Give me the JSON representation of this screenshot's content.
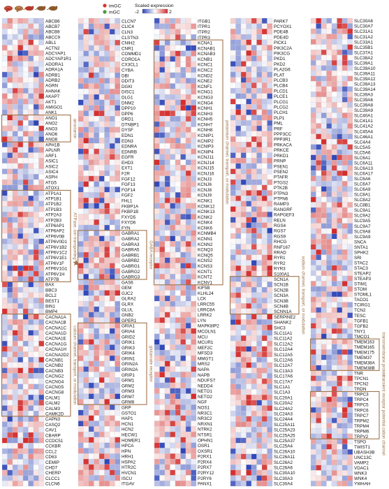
{
  "legend": {
    "groups": [
      {
        "name": "imGC",
        "color": "#d9352b"
      },
      {
        "name": "mGC",
        "color": "#4a9a3c"
      }
    ],
    "scale_title": "Scaled expression",
    "scale_min": "-2",
    "scale_max": "2",
    "colors": {
      "low": "#2e45b8",
      "mid": "#ffffff",
      "high": "#d42a2a",
      "annotation": "#a0744a",
      "grid": "#cfcfcf"
    }
  },
  "header_icons": [
    "brain-icon",
    "brain-icon",
    "mouse-icon",
    "mouse-icon",
    "mouse-icon"
  ],
  "chart_data": {
    "type": "heatmap",
    "columns_per_gene_block": 8,
    "value_range": [
      -2,
      2
    ],
    "panels": [
      {
        "genes": [
          "ABCB6",
          "ABCB7",
          "ABCB8",
          "ABCC9",
          "ABL1",
          "ACTN2",
          "ADCYAP1",
          "ADCYAP1R1",
          "ADORA1",
          "ADRA1A",
          "ADRB1",
          "ADRB2",
          "AGRN",
          "AHNAK",
          "AKAP7",
          "AKT1",
          "AMIGO1",
          "ANK1",
          "ANO1",
          "ANO2",
          "ANO3",
          "ANO6",
          "ANO8",
          "APH1B",
          "APLNR",
          "ARF1",
          "ASIC1",
          "ASIC2",
          "ASIC4",
          "ASPH",
          "ATG5",
          "ATOX1",
          "ATP1A1",
          "ATP1B1",
          "ATP1B2",
          "ATP1B3",
          "ATP2A3",
          "ATP2B3",
          "ATP6AP1",
          "ATP6AP2",
          "ATP6V0B",
          "ATP6V0D1",
          "ATP6V1B2",
          "ATP6V1C2",
          "ATP6V1E1",
          "ATP6V1F",
          "ATP6V1G1",
          "ATP6V1H",
          "ATP7B",
          "BAX",
          "BBC3",
          "BCL2",
          "BEST1",
          "BIN1",
          "BMP4",
          "CACNA1A",
          "CACNA1B",
          "CACNA1C",
          "CACNA1D",
          "CACNA1E",
          "CACNA1G",
          "CACNA1H",
          "CACNA2D2",
          "CACNB1",
          "CACNB2",
          "CACNB3",
          "CACNG2",
          "CACNG4",
          "CACNG5",
          "CACNG8",
          "CALM1",
          "CALM2",
          "CALM3",
          "CAMK2D",
          "CAPN3",
          "CASQ2",
          "CAV1",
          "CBARP",
          "CCDC51",
          "CCKBR",
          "CCL2",
          "CD63",
          "CEMIP",
          "CHD7",
          "CHERP",
          "CLCC1",
          "CLCN6"
        ]
      },
      {
        "genes": [
          "CLCN7",
          "CLIC4",
          "CLN3",
          "CLSTN3",
          "CNIH2",
          "CNR1",
          "COMMD1",
          "CORO1A",
          "CX3CL1",
          "CYBA",
          "DBI",
          "DDIT3",
          "DGKI",
          "DISC1",
          "DLG1",
          "DNM2",
          "DPP10",
          "DPP6",
          "DRD1",
          "DTNBP1",
          "DYSF",
          "EDN1",
          "EDN3",
          "EDNRA",
          "EDNRB",
          "EGFR",
          "EHD3",
          "EXT1",
          "F2R",
          "FGF12",
          "FGF13",
          "FGF14",
          "FGF2",
          "FHL1",
          "FKBP1A",
          "FKBP1B",
          "FXYD5",
          "FXYD6",
          "FYN",
          "GABRA1",
          "GABRA2",
          "GABRA3",
          "GABRA5",
          "GABRB1",
          "GABRB2",
          "GABRG1",
          "GABRG2",
          "GABRG3",
          "GAS6",
          "GEM",
          "GJC2",
          "GLRA2",
          "GLRX",
          "GLUL",
          "GNB2",
          "GPER1",
          "GRIA1",
          "GRIA4",
          "GRID2",
          "GRIK1",
          "GRIK3",
          "GRIK4",
          "GRIN1",
          "GRIN2A",
          "GRIN2A",
          "GRIP1",
          "GRM1",
          "GRM2",
          "GRM3",
          "GRM7",
          "GRM8",
          "GRP",
          "GSTO1",
          "HAP1",
          "HCN1",
          "HCN2",
          "HECW1",
          "HOMER1",
          "HPCA",
          "HPN",
          "HRH1",
          "HSPA2",
          "HTR2C",
          "HVCN1",
          "ISCU",
          "ITGAV"
        ]
      },
      {
        "genes": [
          "ITGB1",
          "ITPR1",
          "ITPR2",
          "ITPR3",
          "KCNA1",
          "KCNAB1",
          "KCNAB3",
          "KCNB1",
          "KCNC1",
          "KCNC2",
          "KCND2",
          "KCNE2",
          "KCNF1",
          "KCNG1",
          "KCNG3",
          "KCNG4",
          "KCNH1",
          "KCNH3",
          "KCNH5",
          "KCNH7",
          "KCNH8",
          "KCNIP1",
          "KCNIP2",
          "KCNIP3",
          "KCNIP4",
          "KCNJ11",
          "KCNJ14",
          "KCNJ15",
          "KCNJ16",
          "KCNJ3",
          "KCNJ6",
          "KCNJ8",
          "KCNJ9",
          "KCNK1",
          "KCNK12",
          "KCNK13",
          "KCNK2",
          "KCNK4",
          "KCNK6",
          "KCNMB4",
          "KCNN1",
          "KCNN2",
          "KCNQ3",
          "KCNQ5",
          "KCNS2",
          "KCNS3",
          "KCNT1",
          "KCNT2",
          "KCNV1",
          "KIF5B",
          "KLHL24",
          "LCK",
          "LRRC55",
          "LRRC8A",
          "LRRK2",
          "LYN",
          "MAPK8IP2",
          "MCOLN1",
          "MCU",
          "MCUR1",
          "MEF2C",
          "MFSD3",
          "MMGT1",
          "MRS2",
          "NAPA",
          "NAPB",
          "NDUFS7",
          "NEDD4",
          "NETO1",
          "NETO2",
          "NGF",
          "NOS1",
          "NR3C1",
          "NR3C2",
          "NRXN1",
          "NTRK2",
          "NTSR1",
          "OPHN1",
          "OSR1",
          "OXSR1",
          "P2RX1",
          "P2RX4",
          "P2RX7",
          "P2RY12",
          "P2RY6",
          "PANX1"
        ]
      },
      {
        "genes": [
          "PARK7",
          "PCYOX1",
          "PDE4B",
          "PDE4D",
          "PICK1",
          "PIK3C2A",
          "PIK3CG",
          "PKD1",
          "PKD2",
          "PLA2G6",
          "PLAT",
          "PLCB3",
          "PLCB4",
          "PLCD1",
          "PLCE1",
          "PLCG1",
          "PLCG2",
          "PLCH1",
          "PLP1",
          "PML",
          "PRF",
          "PPP3CC",
          "PPP3R1",
          "PRKACA",
          "PRKCE",
          "PRKD1",
          "PRNP",
          "PSEN1",
          "PSEN2",
          "PTAFR",
          "PTGS2",
          "PTK2B",
          "PTPN3",
          "PTPN6",
          "RAMP3",
          "RANGRF",
          "RAPGEF3",
          "RELN",
          "RGS4",
          "RGS7",
          "RGS9",
          "RHCG",
          "RNF167",
          "RRAD",
          "RYR1",
          "RYR2",
          "RYR3",
          "S100A1",
          "SCN1A",
          "SCN1B",
          "SCN2B",
          "SCN3A",
          "SCN3B",
          "SCN4B",
          "SCNN1A",
          "SERPINE2",
          "SHANK2",
          "SHC3",
          "SLC11A1",
          "SLC11A2",
          "SLC12A2",
          "SLC12A4",
          "SLC12A5",
          "SLC12A6",
          "SLC12A7",
          "SLC13A3",
          "SLC17A6",
          "SLC17A7",
          "SLC1A1",
          "SLC1A3",
          "SLC20A1",
          "SLC20A2",
          "SLC24A2",
          "SLC24A3",
          "SLC24A4",
          "SLC25A11",
          "SLC25A23",
          "SLC25A25",
          "SLC25A37",
          "SLC25A4",
          "SLC26A10",
          "SLC26A11",
          "SLC26A2",
          "SLC26A6",
          "SLC30A10",
          "SLC30A3",
          "SLC30A4"
        ]
      },
      {
        "genes": [
          "SLC30A6",
          "SLC30A7",
          "SLC31A1",
          "SLC31A2",
          "SLC33A1",
          "SLC35B1",
          "SLC37A1",
          "SLC38A2",
          "SLC39A1",
          "SLC39A10",
          "SLC39A11",
          "SLC39A12",
          "SLC39A13",
          "SLC39A14",
          "SLC39A3",
          "SLC39A6",
          "SLC39A8",
          "SLC39A9",
          "SLC40A1",
          "SLC41A1",
          "SLC41A2",
          "SLC45A4",
          "SLC46A1",
          "SLC4A4",
          "SLC5A5",
          "SLC5A6",
          "SLC6A1",
          "SLC6A11",
          "SLC6A13",
          "SLC6A17",
          "SLC6A6",
          "SLC6A7",
          "SLC6A9",
          "SLC8A1",
          "SLC8A2",
          "SLC8B1",
          "SLC9A1",
          "SLC9A2",
          "SLC9A5",
          "SLC9A7",
          "SLC9A8",
          "SLC9A9",
          "SNCA",
          "SNTA1",
          "SPHK2",
          "SRI",
          "STAC2",
          "STAC3",
          "STEAP2",
          "STEAP3",
          "STIM1",
          "STOM",
          "STOML1",
          "TACO1",
          "TCIRG1",
          "TCN2",
          "TESC",
          "TGFB1",
          "TGFB2",
          "TNY1",
          "TMCO1",
          "TMEM163",
          "TMEM165",
          "TMEM175",
          "TMEM37",
          "TMEM38A",
          "TMEM38B",
          "TNR",
          "TPCN1",
          "TPCN2",
          "TRDN",
          "TRPC3",
          "TRPC4",
          "TRPC5",
          "TRPC6",
          "TRPC7",
          "TRPM2",
          "TRPM4",
          "TRPM6",
          "TRPV2",
          "TSPO",
          "TWIST1",
          "UBASH3B",
          "UNC13C",
          "VAMP2",
          "VDAC1",
          "WNK3",
          "WNK4",
          "YWHAH"
        ]
      }
    ],
    "highlight_boxes": [
      {
        "panel": 0,
        "from": "ANO1",
        "to": "ANO8",
        "label": "anoctamin"
      },
      {
        "panel": 0,
        "from": "ATP1A1",
        "to": "ATP7B",
        "label": "ATPase, ion transporting"
      },
      {
        "panel": 0,
        "from": "CACNA1A",
        "to": "CAMK2D",
        "label": "calcium channel, transport, or modulation"
      },
      {
        "panel": 1,
        "from": "GABRA1",
        "to": "GABRG3",
        "label": "GABA receptor"
      },
      {
        "panel": 1,
        "from": "GRIA1",
        "to": "GRM8",
        "label": "glutamate receptor"
      },
      {
        "panel": 2,
        "from": "KCNA1",
        "to": "KCNV1",
        "label": "potassium channel, transport, or modulation"
      },
      {
        "panel": 3,
        "from": "SCN1A",
        "to": "SCNN1A",
        "label": "sodium channel, transport, or modulation"
      },
      {
        "panel": 4,
        "from": "TMEM163",
        "to": "TMEM38B",
        "label": "transmembrane protein"
      },
      {
        "panel": 4,
        "from": "TRPC3",
        "to": "TRPV2",
        "label": "transient receptor potential cation channel"
      }
    ],
    "star_marker": {
      "panel": 0,
      "gene": "ATP6V1F"
    }
  }
}
